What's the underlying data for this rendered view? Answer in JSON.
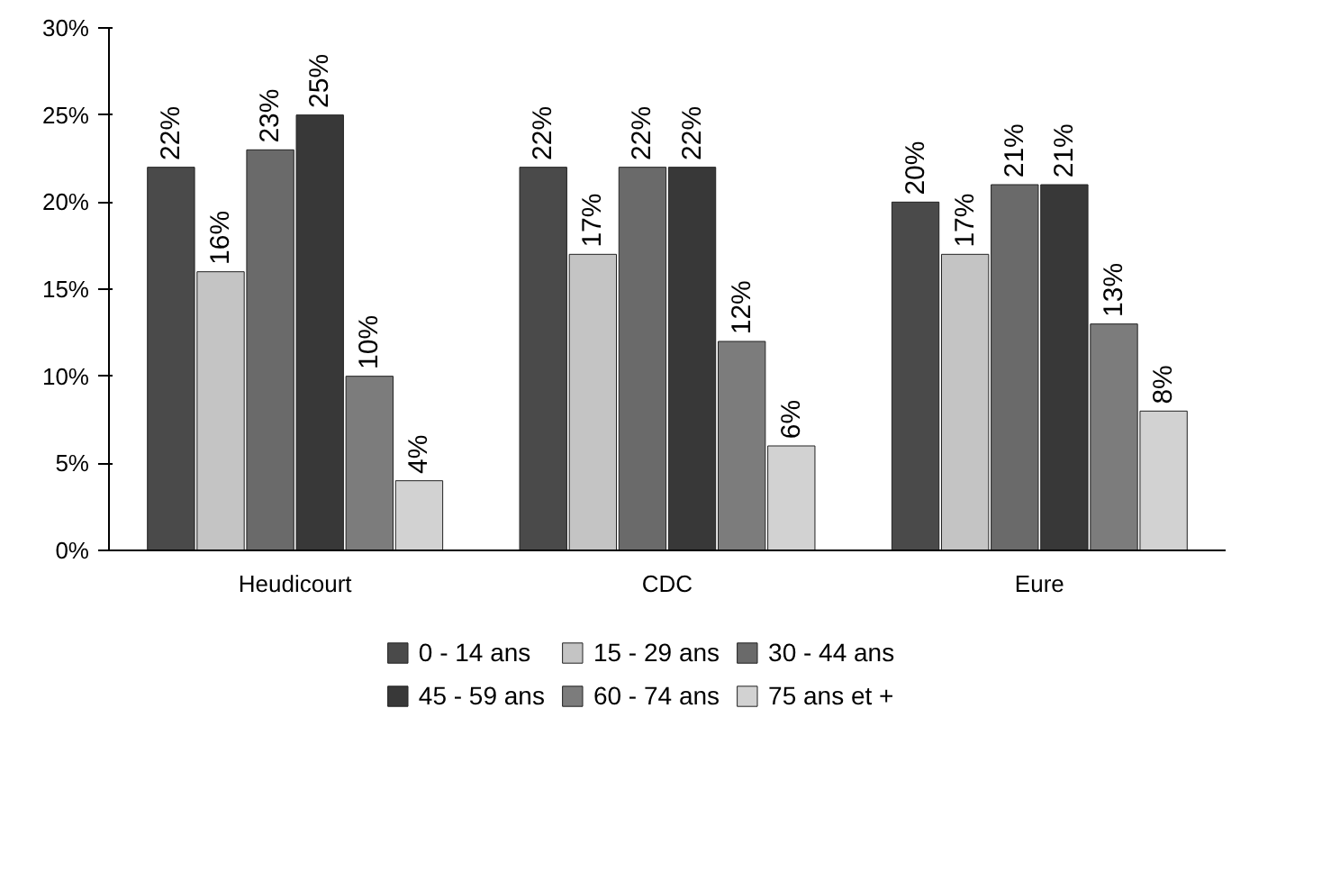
{
  "chart_data": {
    "type": "bar",
    "categories": [
      "Heudicourt",
      "CDC",
      "Eure"
    ],
    "series": [
      {
        "name": "0 - 14 ans",
        "color": "#4a4a4a",
        "values": [
          22,
          22,
          20
        ],
        "value_labels": [
          "22%",
          "22%",
          "20%"
        ]
      },
      {
        "name": "15 - 29 ans",
        "color": "#c4c4c4",
        "values": [
          16,
          17,
          17
        ],
        "value_labels": [
          "16%",
          "17%",
          "17%"
        ]
      },
      {
        "name": "30 - 44 ans",
        "color": "#6a6a6a",
        "values": [
          23,
          22,
          21
        ],
        "value_labels": [
          "23%",
          "22%",
          "21%"
        ]
      },
      {
        "name": "45 - 59 ans",
        "color": "#383838",
        "values": [
          25,
          22,
          21
        ],
        "value_labels": [
          "25%",
          "22%",
          "21%"
        ]
      },
      {
        "name": "60 - 74 ans",
        "color": "#7c7c7c",
        "values": [
          10,
          12,
          13
        ],
        "value_labels": [
          "10%",
          "12%",
          "13%"
        ]
      },
      {
        "name": "75 ans et +",
        "color": "#d2d2d2",
        "values": [
          4,
          6,
          8
        ],
        "value_labels": [
          "4%",
          "6%",
          "8%"
        ]
      }
    ],
    "ylim": [
      0,
      30
    ],
    "yticks": [
      {
        "value": 0,
        "label": "0%"
      },
      {
        "value": 5,
        "label": "5%"
      },
      {
        "value": 10,
        "label": "10%"
      },
      {
        "value": 15,
        "label": "15%"
      },
      {
        "value": 20,
        "label": "20%"
      },
      {
        "value": 25,
        "label": "25%"
      },
      {
        "value": 30,
        "label": "30%"
      }
    ],
    "grid": false,
    "legend": "bottom"
  }
}
